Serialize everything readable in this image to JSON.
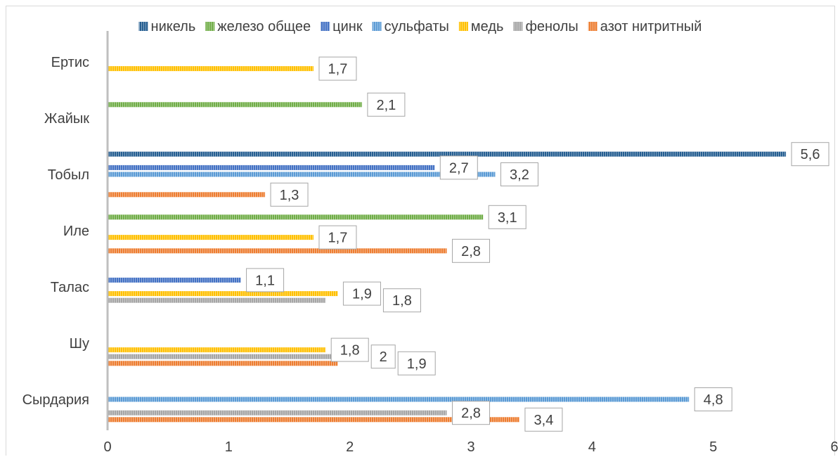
{
  "chart_data": {
    "type": "bar",
    "orientation": "horizontal",
    "title": "",
    "xlabel": "",
    "ylabel": "",
    "categories": [
      "Ертис",
      "Жайык",
      "Тобыл",
      "Иле",
      "Талас",
      "Шу",
      "Сырдария"
    ],
    "xlim": [
      0,
      6
    ],
    "x_ticks": [
      "0",
      "1",
      "2",
      "3",
      "4",
      "5",
      "6"
    ],
    "grid": false,
    "legend_position": "top",
    "series": [
      {
        "name": "никель",
        "color": "#255e91",
        "values": [
          null,
          null,
          5.6,
          null,
          null,
          null,
          null
        ],
        "labels": [
          null,
          null,
          "5,6",
          null,
          null,
          null,
          null
        ]
      },
      {
        "name": "железо общее",
        "color": "#70ad47",
        "values": [
          null,
          2.1,
          null,
          3.1,
          null,
          null,
          null
        ],
        "labels": [
          null,
          "2,1",
          null,
          "3,1",
          null,
          null,
          null
        ]
      },
      {
        "name": "цинк",
        "color": "#4472c4",
        "values": [
          null,
          null,
          2.7,
          null,
          1.1,
          null,
          null
        ],
        "labels": [
          null,
          null,
          "2,7",
          null,
          "1,1",
          null,
          null
        ]
      },
      {
        "name": "сульфаты",
        "color": "#5b9bd5",
        "values": [
          null,
          null,
          3.2,
          null,
          null,
          null,
          4.8
        ],
        "labels": [
          null,
          null,
          "3,2",
          null,
          null,
          null,
          "4,8"
        ]
      },
      {
        "name": "медь",
        "color": "#ffc000",
        "values": [
          1.7,
          null,
          null,
          1.7,
          1.9,
          1.8,
          null
        ],
        "labels": [
          "1,7",
          null,
          null,
          "1,7",
          "1,9",
          "1,8",
          null
        ]
      },
      {
        "name": "фенолы",
        "color": "#a5a5a5",
        "values": [
          null,
          null,
          null,
          null,
          1.8,
          2,
          2.8
        ],
        "labels": [
          null,
          null,
          null,
          null,
          "1,8",
          "2",
          "2,8"
        ]
      },
      {
        "name": "азот нитритный",
        "color": "#ed7d31",
        "values": [
          null,
          null,
          1.3,
          2.8,
          null,
          1.9,
          3.4
        ],
        "labels": [
          null,
          null,
          "1,3",
          "2,8",
          null,
          "1,9",
          "3,4"
        ]
      }
    ]
  }
}
